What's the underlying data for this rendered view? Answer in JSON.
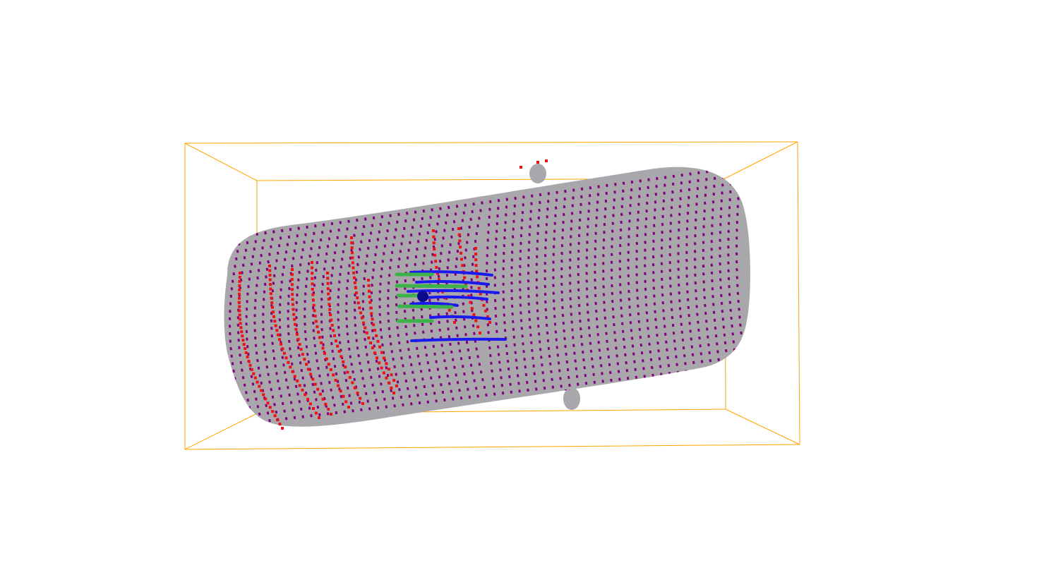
{
  "viewer": {
    "background_color": "#ffffff",
    "bounding_box_color": "#ffa500",
    "body_color": "#a9a7ab",
    "grid_point_color": "#800080",
    "red_point_color": "#ee1111",
    "blue_line_color": "#1a1aee",
    "green_line_color": "#3bb34a",
    "marker_color": "#0b0b8a"
  }
}
